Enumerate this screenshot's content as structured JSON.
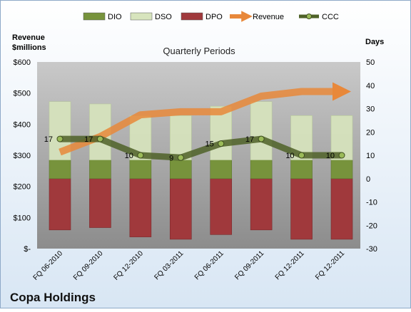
{
  "chart_data": {
    "type": "bar",
    "title": "Quarterly Periods",
    "company": "Copa Holdings",
    "left_axis": {
      "label_line1": "Revenue",
      "label_line2": "$millions",
      "ylim": [
        0,
        600
      ],
      "ticks": [
        "$-",
        "$100",
        "$200",
        "$300",
        "$400",
        "$500",
        "$600"
      ],
      "tick_values": [
        0,
        100,
        200,
        300,
        400,
        500,
        600
      ]
    },
    "right_axis": {
      "label": "Days",
      "ylim": [
        -30,
        50
      ],
      "ticks": [
        "-30",
        "-20",
        "-10",
        "0",
        "10",
        "20",
        "30",
        "40",
        "50"
      ],
      "tick_values": [
        -30,
        -20,
        -10,
        0,
        10,
        20,
        30,
        40,
        50
      ]
    },
    "categories": [
      "FQ 06-2010",
      "FQ 09-2010",
      "FQ 12-2010",
      "FQ 03-2011",
      "FQ 06-2011",
      "FQ 09-2011",
      "FQ 12-2011",
      "FQ 12-2011"
    ],
    "series": [
      {
        "name": "DIO",
        "type": "stacked-bar",
        "axis": "days",
        "color": "#77933C",
        "values": [
          8,
          8,
          8,
          8,
          8,
          8,
          8,
          8
        ]
      },
      {
        "name": "DSO",
        "type": "stacked-bar",
        "axis": "days",
        "color": "#D7E4BD",
        "values": [
          25,
          24,
          19,
          19,
          23,
          25,
          19,
          19
        ]
      },
      {
        "name": "DPO",
        "type": "stacked-bar",
        "axis": "days",
        "color": "#A0393C",
        "values": [
          -22,
          -21,
          -25,
          -26,
          -24,
          -22,
          -26,
          -26
        ]
      },
      {
        "name": "Revenue",
        "type": "line-arrow",
        "axis": "revenue",
        "color": "#E8883A",
        "values": [
          310,
          360,
          430,
          440,
          440,
          490,
          505,
          505
        ]
      },
      {
        "name": "CCC",
        "type": "line-markers",
        "axis": "days",
        "color": "#4F6228",
        "values": [
          17,
          17,
          10,
          9,
          15,
          17,
          10,
          10
        ],
        "labels": [
          "17",
          "17",
          "10",
          "9",
          "15",
          "17",
          "10",
          "10"
        ]
      }
    ],
    "legend": {
      "position": "top",
      "items": [
        "DIO",
        "DSO",
        "DPO",
        "Revenue",
        "CCC"
      ]
    }
  }
}
